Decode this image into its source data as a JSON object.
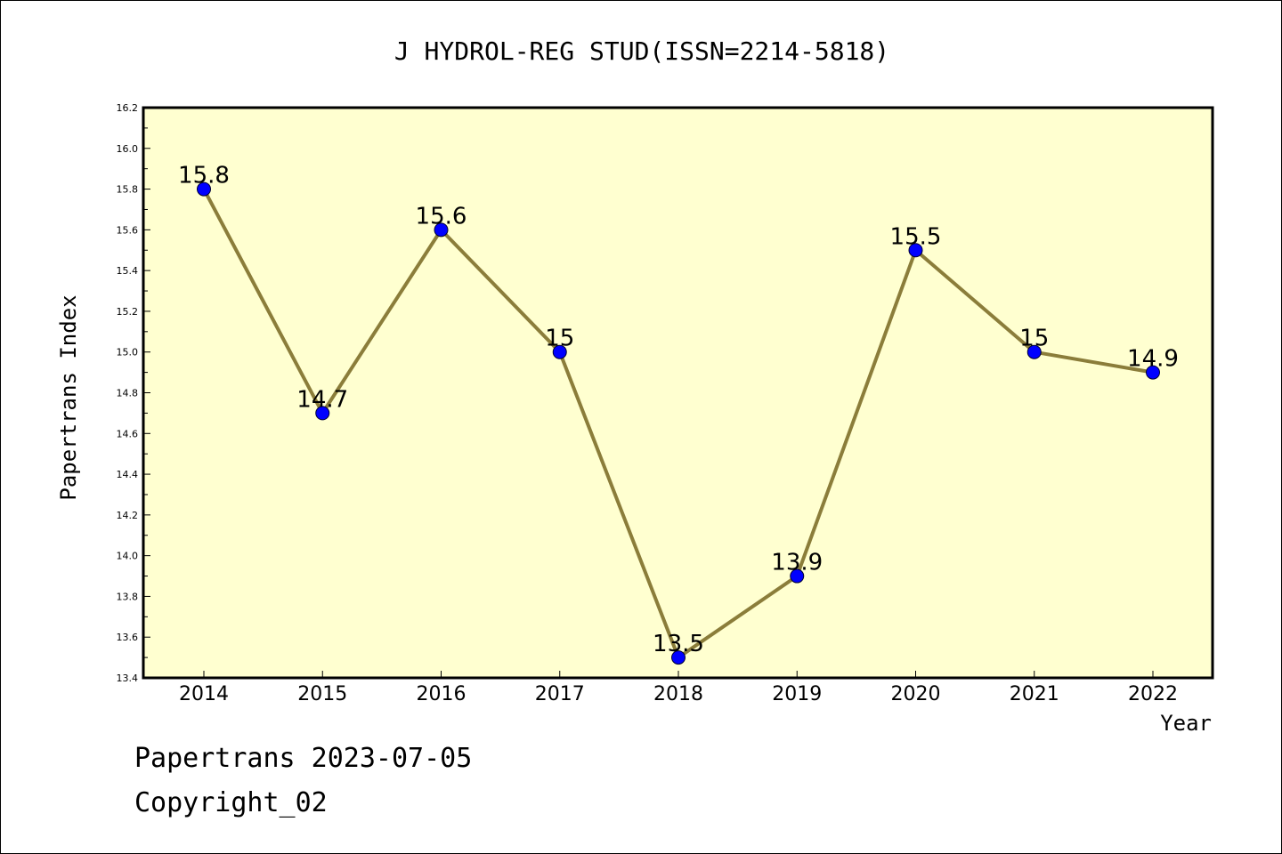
{
  "chart_data": {
    "type": "line",
    "title": "J HYDROL-REG STUD(ISSN=2214-5818)",
    "xlabel": "Year",
    "ylabel": "Papertrans Index",
    "categories": [
      "2014",
      "2015",
      "2016",
      "2017",
      "2018",
      "2019",
      "2020",
      "2021",
      "2022"
    ],
    "series": [
      {
        "values": [
          15.8,
          14.7,
          15.6,
          15.0,
          13.5,
          13.9,
          15.5,
          15.0,
          14.9
        ],
        "labels": [
          "15.8",
          "14.7",
          "15.6",
          "15",
          "13.5",
          "13.9",
          "15.5",
          "15",
          "14.9"
        ]
      }
    ],
    "ylim": [
      13.4,
      16.2
    ],
    "yticks": [
      "13.4",
      "13.6",
      "13.8",
      "14.0",
      "14.2",
      "14.4",
      "14.6",
      "14.8",
      "15.0",
      "15.2",
      "15.4",
      "15.6",
      "15.8",
      "16.0",
      "16.2"
    ],
    "grid": false,
    "colors": {
      "plot_background": "#ffffd0",
      "line": "#8b7d3a",
      "marker": "#0000ff"
    }
  },
  "footer": {
    "line1": "Papertrans 2023-07-05",
    "line2": "Copyright_02"
  }
}
